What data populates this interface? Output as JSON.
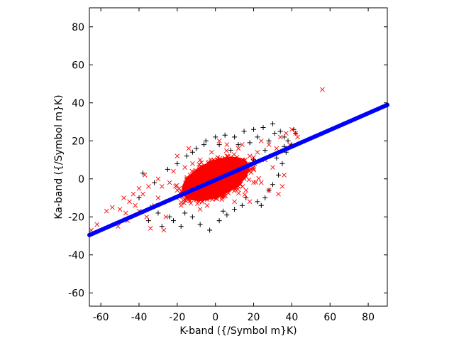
{
  "chart_data": {
    "type": "scatter",
    "title": "",
    "xlabel": "K-band ({/Symbol m}K)",
    "ylabel": "Ka-band ({/Symbol m}K)",
    "xlim": [
      -66,
      90
    ],
    "ylim": [
      -67,
      90
    ],
    "xticks": [
      -60,
      -40,
      -20,
      0,
      20,
      40,
      60,
      80
    ],
    "yticks": [
      -60,
      -40,
      -20,
      0,
      20,
      40,
      60,
      80
    ],
    "grid": false,
    "legend": "none",
    "series": [
      {
        "marker": "plus",
        "color": "#000000",
        "points": [
          [
            -30,
            -18
          ],
          [
            -34,
            -15
          ],
          [
            -26,
            -12
          ],
          [
            -22,
            -22
          ],
          [
            -18,
            -25
          ],
          [
            -12,
            -20
          ],
          [
            -8,
            -24
          ],
          [
            -3,
            -27
          ],
          [
            2,
            -22
          ],
          [
            6,
            -19
          ],
          [
            10,
            -16
          ],
          [
            14,
            -14
          ],
          [
            -25,
            5
          ],
          [
            -20,
            8
          ],
          [
            -15,
            12
          ],
          [
            -10,
            16
          ],
          [
            -5,
            20
          ],
          [
            0,
            22
          ],
          [
            5,
            23
          ],
          [
            10,
            22
          ],
          [
            15,
            25
          ],
          [
            20,
            26
          ],
          [
            25,
            27
          ],
          [
            30,
            29
          ],
          [
            34,
            25
          ],
          [
            36,
            22
          ],
          [
            38,
            20
          ],
          [
            40,
            18
          ],
          [
            41,
            26
          ],
          [
            42,
            24
          ],
          [
            37,
            14
          ],
          [
            35,
            8
          ],
          [
            33,
            2
          ],
          [
            30,
            -3
          ],
          [
            28,
            -6
          ],
          [
            26,
            -10
          ],
          [
            24,
            -14
          ],
          [
            22,
            -12
          ],
          [
            -35,
            -22
          ],
          [
            -28,
            -25
          ],
          [
            -38,
            3
          ],
          [
            -32,
            -2
          ],
          [
            -40,
            -10
          ],
          [
            18,
            19
          ],
          [
            12,
            18
          ],
          [
            8,
            15
          ],
          [
            28,
            20
          ],
          [
            31,
            24
          ],
          [
            22,
            22
          ],
          [
            -24,
            -20
          ],
          [
            -16,
            -18
          ],
          [
            4,
            -17
          ],
          [
            16,
            -10
          ],
          [
            32,
            11
          ],
          [
            36,
            17
          ],
          [
            26,
            15
          ],
          [
            -6,
            18
          ],
          [
            2,
            18
          ],
          [
            -12,
            14
          ],
          [
            20,
            10
          ]
        ]
      },
      {
        "marker": "cross",
        "color": "#ff0000",
        "points": [
          [
            -65,
            -27
          ],
          [
            -62,
            -24
          ],
          [
            -57,
            -17
          ],
          [
            -54,
            -15
          ],
          [
            -50,
            -16
          ],
          [
            -51,
            -25
          ],
          [
            -47,
            -18
          ],
          [
            -45,
            -12
          ],
          [
            -43,
            -8
          ],
          [
            -46,
            -22
          ],
          [
            -40,
            -5
          ],
          [
            -38,
            -8
          ],
          [
            -40,
            -17
          ],
          [
            -36,
            -20
          ],
          [
            -34,
            -26
          ],
          [
            -37,
            2
          ],
          [
            -30,
            -10
          ],
          [
            -28,
            -4
          ],
          [
            -32,
            -14
          ],
          [
            -26,
            -20
          ],
          [
            -24,
            -2
          ],
          [
            -22,
            4
          ],
          [
            -20,
            -6
          ],
          [
            -18,
            -14
          ],
          [
            -15,
            0
          ],
          [
            -12,
            8
          ],
          [
            -10,
            -4
          ],
          [
            -8,
            10
          ],
          [
            -6,
            -10
          ],
          [
            -4,
            4
          ],
          [
            -2,
            14
          ],
          [
            0,
            0
          ],
          [
            2,
            -8
          ],
          [
            4,
            6
          ],
          [
            6,
            12
          ],
          [
            8,
            -2
          ],
          [
            10,
            8
          ],
          [
            12,
            16
          ],
          [
            14,
            2
          ],
          [
            16,
            -6
          ],
          [
            18,
            12
          ],
          [
            20,
            5
          ],
          [
            22,
            14
          ],
          [
            24,
            -2
          ],
          [
            26,
            10
          ],
          [
            28,
            18
          ],
          [
            30,
            6
          ],
          [
            32,
            16
          ],
          [
            34,
            22
          ],
          [
            35,
            -4
          ],
          [
            37,
            24
          ],
          [
            39,
            18
          ],
          [
            40,
            26
          ],
          [
            42,
            24
          ],
          [
            43,
            22
          ],
          [
            36,
            2
          ],
          [
            33,
            -8
          ],
          [
            56,
            47
          ],
          [
            -42,
            -14
          ],
          [
            -48,
            -10
          ],
          [
            -27,
            -27
          ],
          [
            -20,
            12
          ],
          [
            -14,
            16
          ],
          [
            6,
            18
          ],
          [
            18,
            -12
          ],
          [
            24,
            20
          ],
          [
            -8,
            -16
          ],
          [
            2,
            20
          ],
          [
            10,
            -12
          ],
          [
            -30,
            0
          ],
          [
            -35,
            -4
          ],
          [
            28,
            -6
          ],
          [
            -16,
            6
          ],
          [
            14,
            18
          ]
        ],
        "cloud_center": [
          0,
          0
        ],
        "cloud_slope": 0.45,
        "cloud_spread": [
          14,
          7
        ]
      },
      {
        "marker": "dot",
        "color": "#0000ff",
        "line": {
          "slope": 0.4391,
          "intercept": -0.6,
          "x_range": [
            -66,
            90
          ]
        }
      }
    ]
  }
}
